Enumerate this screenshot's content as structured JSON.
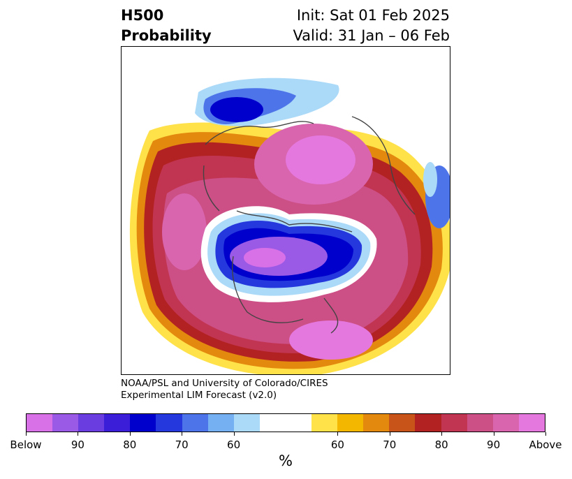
{
  "header": {
    "field": "H500",
    "product": "Probability",
    "init": "Init: Sat 01 Feb 2025",
    "valid": "Valid: 31 Jan – 06 Feb"
  },
  "credit": {
    "line1": "NOAA/PSL and University of Colorado/CIRES",
    "line2": "Experimental LIM Forecast (v2.0)"
  },
  "colorbar": {
    "unit": "%",
    "colors": [
      "#d870e8",
      "#9b5ae6",
      "#6a3de0",
      "#3a1ed8",
      "#0000cc",
      "#2438dd",
      "#4e74ea",
      "#74b0f2",
      "#abd9f8",
      "#ffffff",
      "#ffe14a",
      "#f3b700",
      "#e38a0e",
      "#c9541a",
      "#b22222",
      "#c23552",
      "#cc4f86",
      "#d865ae",
      "#e478de"
    ],
    "labels": [
      "Below",
      "90",
      "80",
      "70",
      "60",
      "60",
      "70",
      "80",
      "90",
      "Above"
    ]
  },
  "map": {
    "blue": "#0000cc",
    "red": "#b22222",
    "purple": "#9b5ae6",
    "magenta": "#d865ae",
    "orange": "#f3b700",
    "coast": "#444444"
  }
}
